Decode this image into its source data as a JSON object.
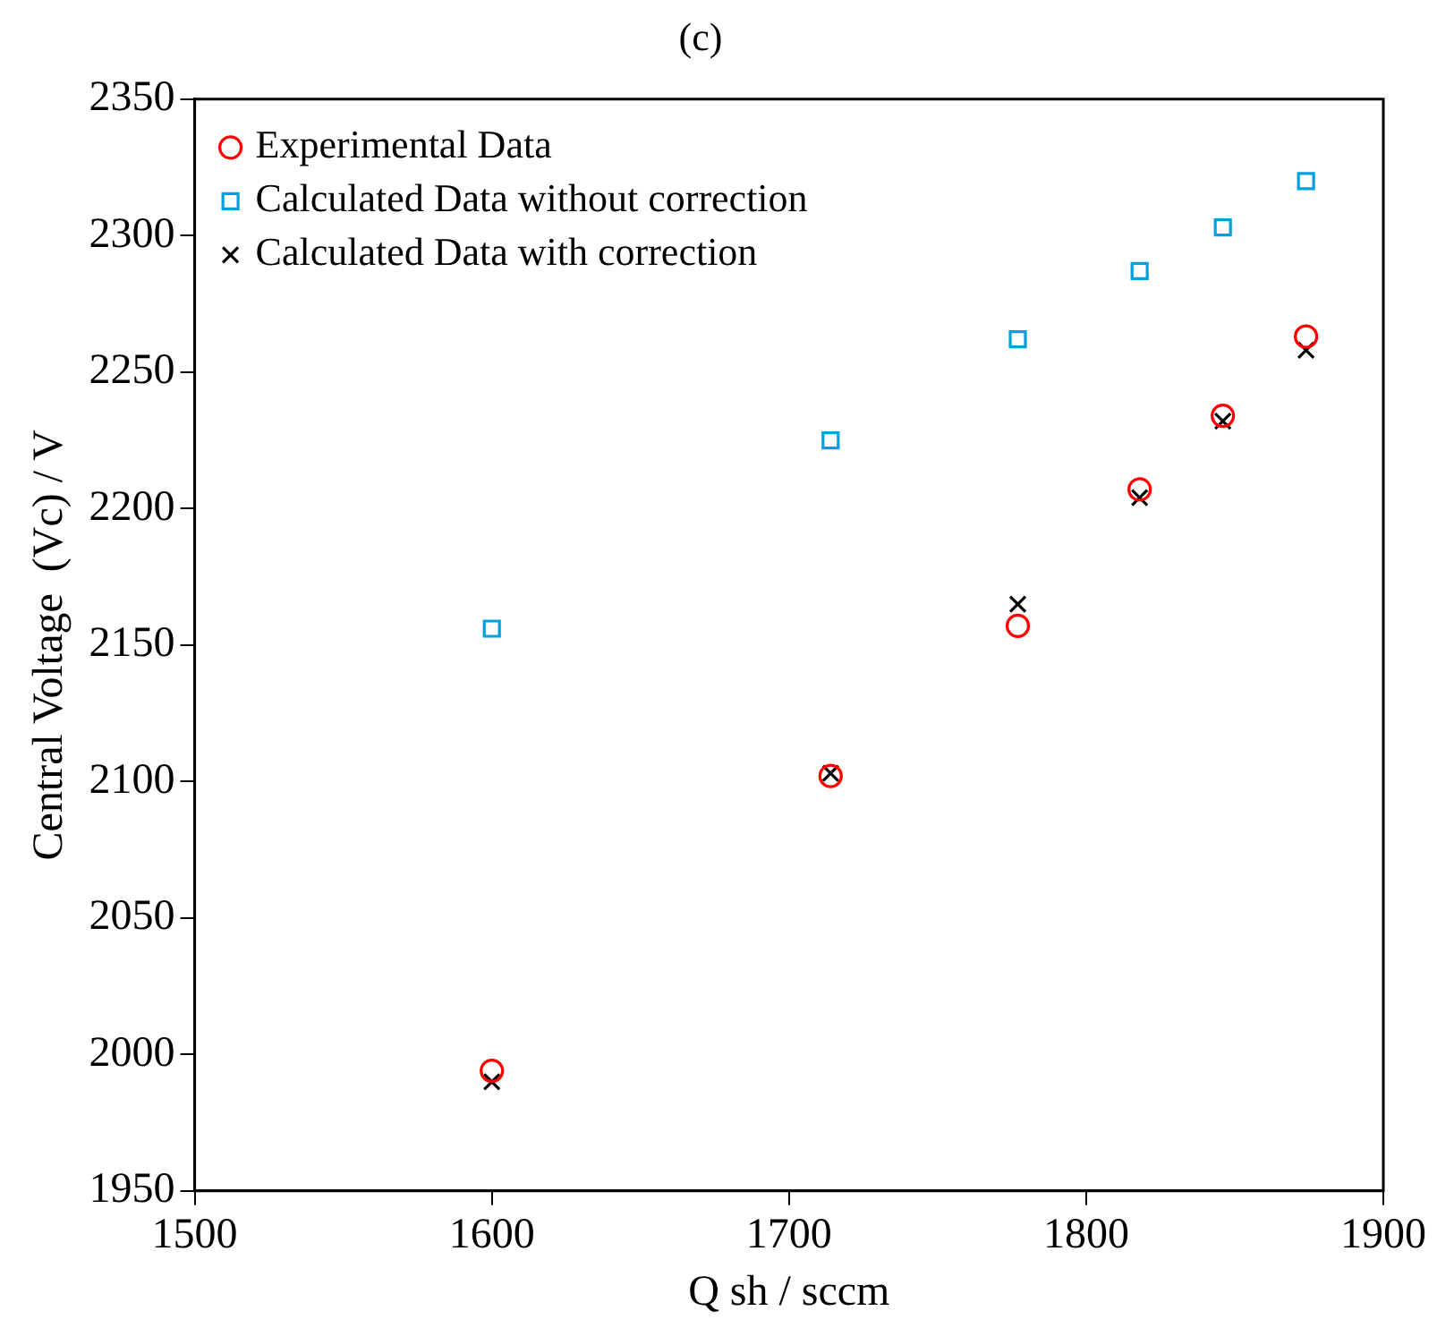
{
  "chart_data": {
    "type": "scatter",
    "title": "(c)",
    "xlabel": "Q sh / sccm",
    "ylabel": "Central Voltage  (Vc) / V",
    "xlim": [
      1500,
      1900
    ],
    "xticks": [
      1500,
      1600,
      1700,
      1800,
      1900
    ],
    "ylim": [
      1950,
      2350
    ],
    "yticks": [
      1950,
      2000,
      2050,
      2100,
      2150,
      2200,
      2250,
      2300,
      2350
    ],
    "grid": false,
    "legend": "top left",
    "series": [
      {
        "name": "Experimental Data",
        "color": "#ff0000",
        "marker": "circle",
        "x": [
          1600,
          1714,
          1777,
          1818,
          1846,
          1874
        ],
        "values": [
          1994,
          2102,
          2157,
          2207,
          2234,
          2263
        ]
      },
      {
        "name": "Calculated Data without correction",
        "color": "#00a0e0",
        "marker": "square",
        "x": [
          1600,
          1714,
          1777,
          1818,
          1846,
          1874
        ],
        "values": [
          2156,
          2225,
          2262,
          2287,
          2303,
          2320
        ]
      },
      {
        "name": "Calculated Data with correction",
        "color": "#000000",
        "marker": "cross",
        "x": [
          1600,
          1714,
          1777,
          1818,
          1846,
          1874
        ],
        "values": [
          1990,
          2103,
          2165,
          2204,
          2232,
          2258
        ]
      }
    ]
  }
}
